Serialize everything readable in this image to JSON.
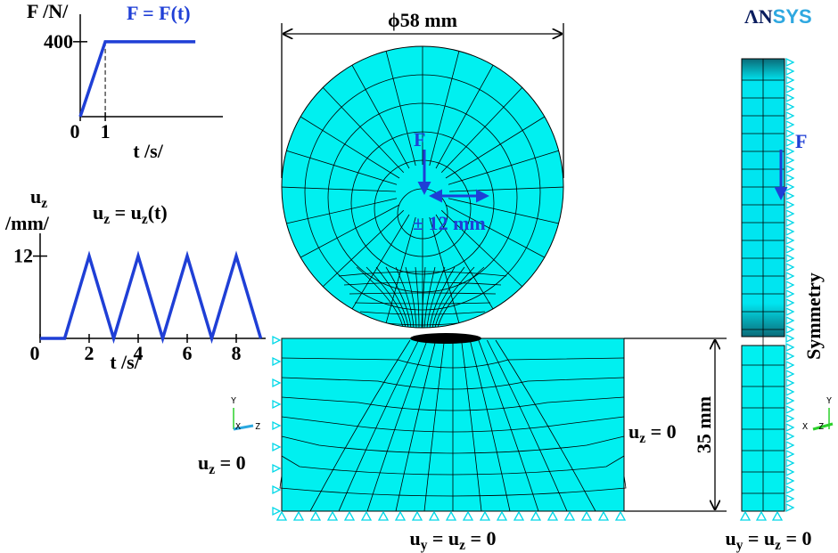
{
  "chart_data": [
    {
      "type": "line",
      "ylabel": "F /N/",
      "annotation": "F = F(t)",
      "xlabel": "t /s/",
      "x": [
        0,
        1,
        4.6
      ],
      "values": [
        0,
        400,
        400
      ],
      "color": "#1f3fd6",
      "xlim": [
        0,
        5.7
      ],
      "ylim": [
        0,
        480
      ],
      "xticks": [
        0,
        1
      ],
      "yticks": [
        400
      ]
    },
    {
      "type": "line",
      "ylabel": [
        {
          "text": "u"
        },
        {
          "text": "z",
          "sub": true
        }
      ],
      "yunit": "/mm/",
      "annotation": [
        {
          "text": "u"
        },
        {
          "text": "z",
          "sub": true
        },
        {
          "text": " = u"
        },
        {
          "text": "z",
          "sub": true
        },
        {
          "text": "(t)"
        }
      ],
      "xlabel": "t /s/",
      "x": [
        0,
        1,
        2,
        3,
        4,
        5,
        6,
        7,
        8,
        9
      ],
      "values": [
        0,
        0,
        12,
        0,
        12,
        0,
        12,
        0,
        12,
        0
      ],
      "color": "#1f3fd6",
      "xlim": [
        0,
        9.2
      ],
      "ylim": [
        0,
        13.5
      ],
      "xticks": [
        0,
        2,
        4,
        6,
        8
      ],
      "yticks": [
        12
      ]
    }
  ],
  "diagram": {
    "logo": [
      "ΛN",
      "SYS"
    ],
    "diameter": "ϕ58 mm",
    "force_label": "F",
    "shift_label": "± 12 mm",
    "side_force_label": "F",
    "symmetry": "Symmetry",
    "height": "35 mm",
    "left_bc": [
      {
        "text": "u"
      },
      {
        "text": "z",
        "sub": true
      },
      {
        "text": " = 0"
      }
    ],
    "right_bc": [
      {
        "text": "u"
      },
      {
        "text": "z",
        "sub": true
      },
      {
        "text": " = 0"
      }
    ],
    "bottom_bc": [
      {
        "text": "u"
      },
      {
        "text": "y",
        "sub": true
      },
      {
        "text": " = u"
      },
      {
        "text": "z",
        "sub": true
      },
      {
        "text": " = 0"
      }
    ],
    "side_bc": [
      {
        "text": "u"
      },
      {
        "text": "y",
        "sub": true
      },
      {
        "text": " = u"
      },
      {
        "text": "z",
        "sub": true
      },
      {
        "text": " = 0"
      }
    ],
    "triad_left": {
      "x": "X",
      "y": "Y",
      "z": "Z"
    },
    "triad_right": {
      "x": "X",
      "y": "Y",
      "z": "Z"
    }
  }
}
